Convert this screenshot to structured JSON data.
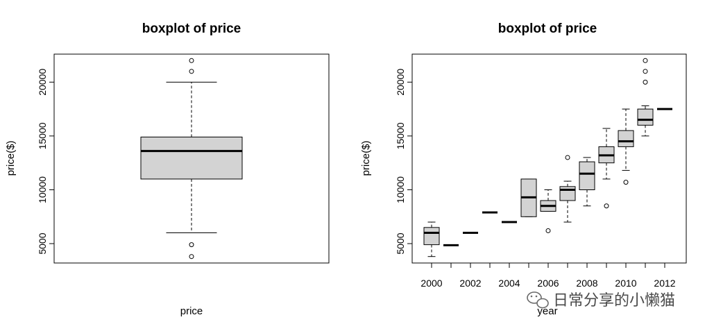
{
  "chart_data": [
    {
      "type": "boxplot",
      "title": "boxplot of price",
      "xlabel": "price",
      "ylabel": "price($)",
      "ylim": [
        3200,
        22600
      ],
      "yticks": [
        5000,
        10000,
        15000,
        20000
      ],
      "boxes": [
        {
          "min": 6000,
          "q1": 11000,
          "median": 13600,
          "q3": 14900,
          "max": 20000,
          "outliers": [
            22000,
            21000,
            4900,
            3800
          ]
        }
      ]
    },
    {
      "type": "boxplot",
      "title": "boxplot of price",
      "xlabel": "year",
      "ylabel": "price($)",
      "ylim": [
        3200,
        22600
      ],
      "yticks": [
        5000,
        10000,
        15000,
        20000
      ],
      "xticks": [
        "2000",
        "2002",
        "2004",
        "2006",
        "2008",
        "2010",
        "2012"
      ],
      "categories": [
        "2000",
        "2001",
        "2002",
        "2003",
        "2004",
        "2005",
        "2006",
        "2007",
        "2008",
        "2009",
        "2010",
        "2011",
        "2012"
      ],
      "boxes": [
        {
          "min": 3800,
          "q1": 4900,
          "median": 6000,
          "q3": 6500,
          "max": 7000,
          "outliers": []
        },
        {
          "min": 4850,
          "q1": 4850,
          "median": 4850,
          "q3": 4850,
          "max": 4850,
          "outliers": []
        },
        {
          "min": 6000,
          "q1": 6000,
          "median": 6000,
          "q3": 6000,
          "max": 6000,
          "outliers": []
        },
        {
          "min": 7900,
          "q1": 7900,
          "median": 7900,
          "q3": 7900,
          "max": 7900,
          "outliers": []
        },
        {
          "min": 7000,
          "q1": 7000,
          "median": 7000,
          "q3": 7000,
          "max": 7000,
          "outliers": []
        },
        {
          "min": 7500,
          "q1": 7500,
          "median": 9300,
          "q3": 11000,
          "max": 11000,
          "outliers": []
        },
        {
          "min": 8000,
          "q1": 8000,
          "median": 8500,
          "q3": 9000,
          "max": 10000,
          "outliers": [
            6200
          ]
        },
        {
          "min": 7000,
          "q1": 9000,
          "median": 10000,
          "q3": 10300,
          "max": 10800,
          "outliers": [
            13000
          ]
        },
        {
          "min": 8500,
          "q1": 10000,
          "median": 11500,
          "q3": 12600,
          "max": 13000,
          "outliers": []
        },
        {
          "min": 11000,
          "q1": 12500,
          "median": 13200,
          "q3": 14000,
          "max": 15700,
          "outliers": [
            8500
          ]
        },
        {
          "min": 11800,
          "q1": 14000,
          "median": 14500,
          "q3": 15500,
          "max": 17500,
          "outliers": [
            10700
          ]
        },
        {
          "min": 15000,
          "q1": 16000,
          "median": 16500,
          "q3": 17500,
          "max": 17800,
          "outliers": [
            22000,
            21000,
            20000
          ]
        },
        {
          "min": 17500,
          "q1": 17500,
          "median": 17500,
          "q3": 17500,
          "max": 17500,
          "outliers": []
        }
      ]
    }
  ],
  "colors": {
    "box_fill": "#d3d3d3",
    "stroke": "#000000"
  },
  "watermark": {
    "icon": "wechat-icon",
    "text": "日常分享的小懒猫"
  }
}
